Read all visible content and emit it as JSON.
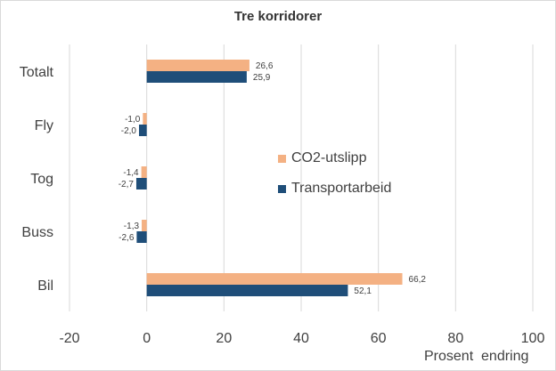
{
  "chart_data": {
    "type": "bar",
    "orientation": "horizontal",
    "title": "Tre korridorer",
    "xlabel": "Prosent  endring",
    "categories": [
      "Totalt",
      "Fly",
      "Tog",
      "Buss",
      "Bil"
    ],
    "series": [
      {
        "name": "CO2-utslipp",
        "color": "#f4b183",
        "values": [
          26.6,
          -1.0,
          -1.4,
          -1.3,
          66.2
        ],
        "labels": [
          "26,6",
          "-1,0",
          "-1,4",
          "-1,3",
          "66,2"
        ]
      },
      {
        "name": "Transportarbeid",
        "color": "#1f4e79",
        "values": [
          25.9,
          -2.0,
          -2.7,
          -2.6,
          52.1
        ],
        "labels": [
          "25,9",
          "-2,0",
          "-2,7",
          "-2,6",
          "52,1"
        ]
      }
    ],
    "xlim": [
      -20,
      100
    ],
    "xticks": [
      "-20",
      "0",
      "20",
      "40",
      "60",
      "80",
      "100"
    ],
    "grid": "vertical",
    "legend_position": "center-right"
  }
}
